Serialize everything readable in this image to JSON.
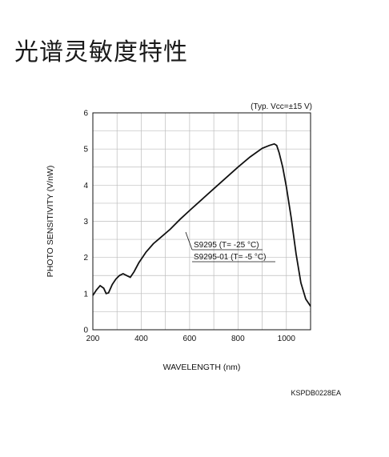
{
  "page": {
    "title": "光谱灵敏度特性"
  },
  "chart_data": {
    "type": "line",
    "title": "",
    "note": "(Typ. Vcc=±15 V)",
    "xlabel": "WAVELENGTH (nm)",
    "ylabel": "PHOTO SENSITIVITY (V/nW)",
    "xlim": [
      200,
      1100
    ],
    "ylim": [
      0,
      6
    ],
    "x_ticks": [
      200,
      400,
      600,
      800,
      1000
    ],
    "y_ticks": [
      0,
      1,
      2,
      3,
      4,
      5,
      6
    ],
    "grid": true,
    "series": [
      {
        "color": "#111111",
        "x": [
          200,
          215,
          230,
          245,
          255,
          265,
          280,
          295,
          310,
          325,
          340,
          355,
          370,
          390,
          420,
          450,
          480,
          520,
          560,
          600,
          650,
          700,
          750,
          800,
          850,
          900,
          930,
          950,
          960,
          970,
          985,
          1000,
          1020,
          1040,
          1060,
          1080,
          1100
        ],
        "y": [
          0.95,
          1.1,
          1.22,
          1.15,
          1.0,
          1.02,
          1.25,
          1.4,
          1.5,
          1.55,
          1.5,
          1.45,
          1.6,
          1.85,
          2.15,
          2.38,
          2.55,
          2.78,
          3.05,
          3.3,
          3.6,
          3.9,
          4.2,
          4.5,
          4.78,
          5.02,
          5.1,
          5.14,
          5.1,
          4.9,
          4.5,
          3.95,
          3.1,
          2.1,
          1.3,
          0.85,
          0.65
        ]
      }
    ],
    "annotations": [
      "S9295 (T= -25 °C)",
      "S9295-01 (T= -5 °C)"
    ],
    "figure_code": "KSPDB0228EA"
  }
}
